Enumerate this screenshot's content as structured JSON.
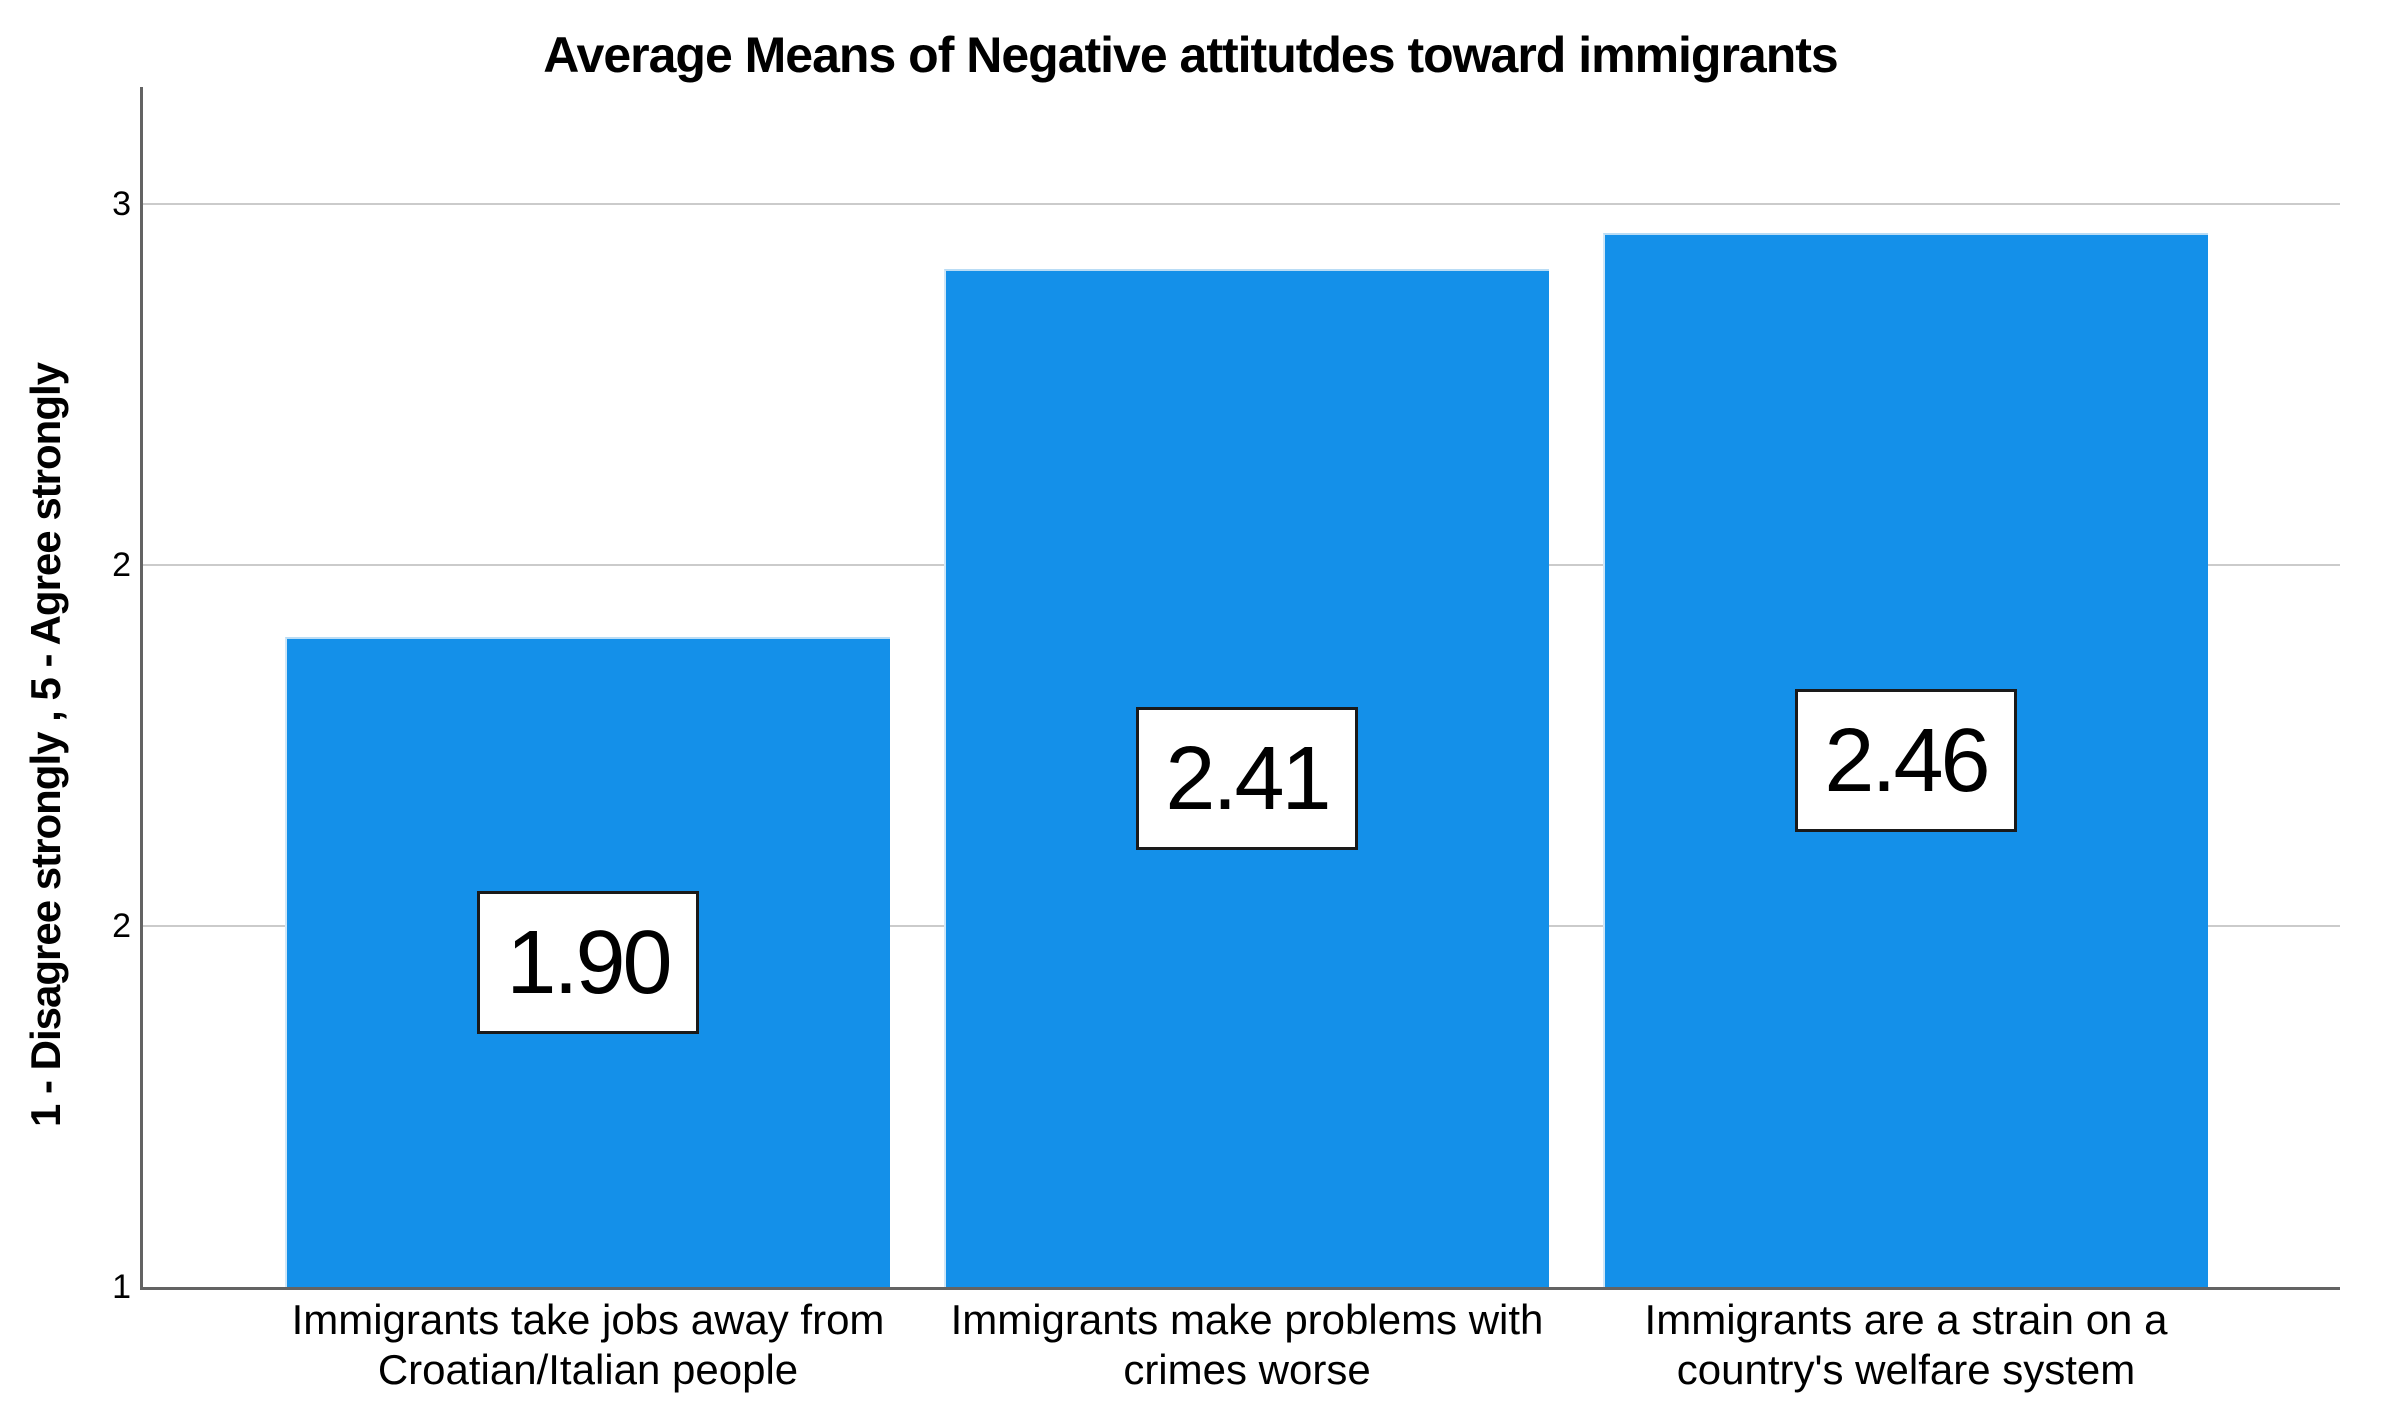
{
  "title": "Average Means of Negative attitutdes toward immigrants",
  "chart_data": {
    "type": "bar",
    "title": "Average Means of Negative attitutdes toward immigrants",
    "xlabel": "",
    "ylabel": "1 - Disagree strongly , 5 - Agree strongly",
    "categories": [
      [
        "Immigrants take jobs away from",
        "Croatian/Italian people"
      ],
      [
        "Immigrants make problems with",
        "crimes worse"
      ],
      [
        "Immigrants are a strain on a",
        "country's welfare system"
      ]
    ],
    "values": [
      1.9,
      2.41,
      2.46
    ],
    "value_labels": [
      "1.90",
      "2.41",
      "2.46"
    ],
    "y_ticks": [
      {
        "label": "1",
        "value": 1.0
      },
      {
        "label": "2",
        "value": 1.5
      },
      {
        "label": "2",
        "value": 2.0
      },
      {
        "label": "3",
        "value": 2.5
      }
    ],
    "ylim": [
      1.0,
      2.66
    ],
    "grid": "horizontal-only",
    "legend": "none",
    "bar_color": "#1490e9",
    "bar_edge_color": "#b9dcf5",
    "gridline_color": "#cbcbcb",
    "axis_line_color": "#636363",
    "data_label_style": "white box with black border, centered inside bar"
  }
}
